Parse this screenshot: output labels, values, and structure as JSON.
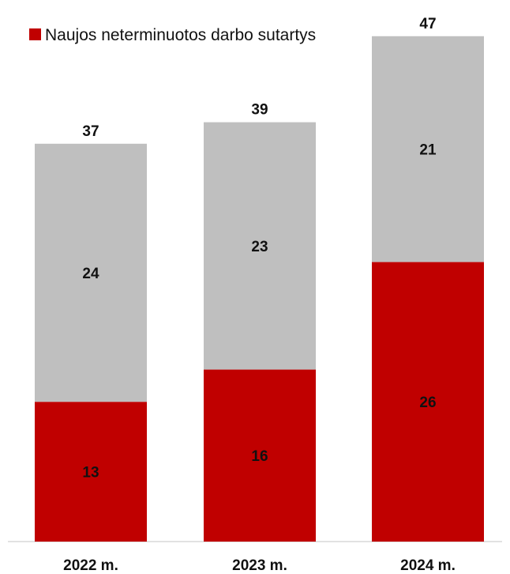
{
  "chart_data": {
    "type": "bar",
    "stacked": true,
    "categories": [
      "2022 m.",
      "2023 m.",
      "2024 m."
    ],
    "series": [
      {
        "name": "Naujos neterminuotos darbo sutartys",
        "values": [
          13,
          16,
          26
        ],
        "color": "#c00000"
      },
      {
        "values": [
          24,
          23,
          21
        ],
        "color": "#bfbfbf"
      }
    ],
    "totals": [
      37,
      39,
      47
    ],
    "legend": {
      "position": "top-left",
      "entries": [
        "Naujos neterminuotos darbo sutartys"
      ]
    },
    "title": "",
    "xlabel": "",
    "ylabel": "",
    "ylim": [
      0,
      47
    ],
    "grid": false,
    "value_axis_visible": false,
    "data_labels": true
  }
}
